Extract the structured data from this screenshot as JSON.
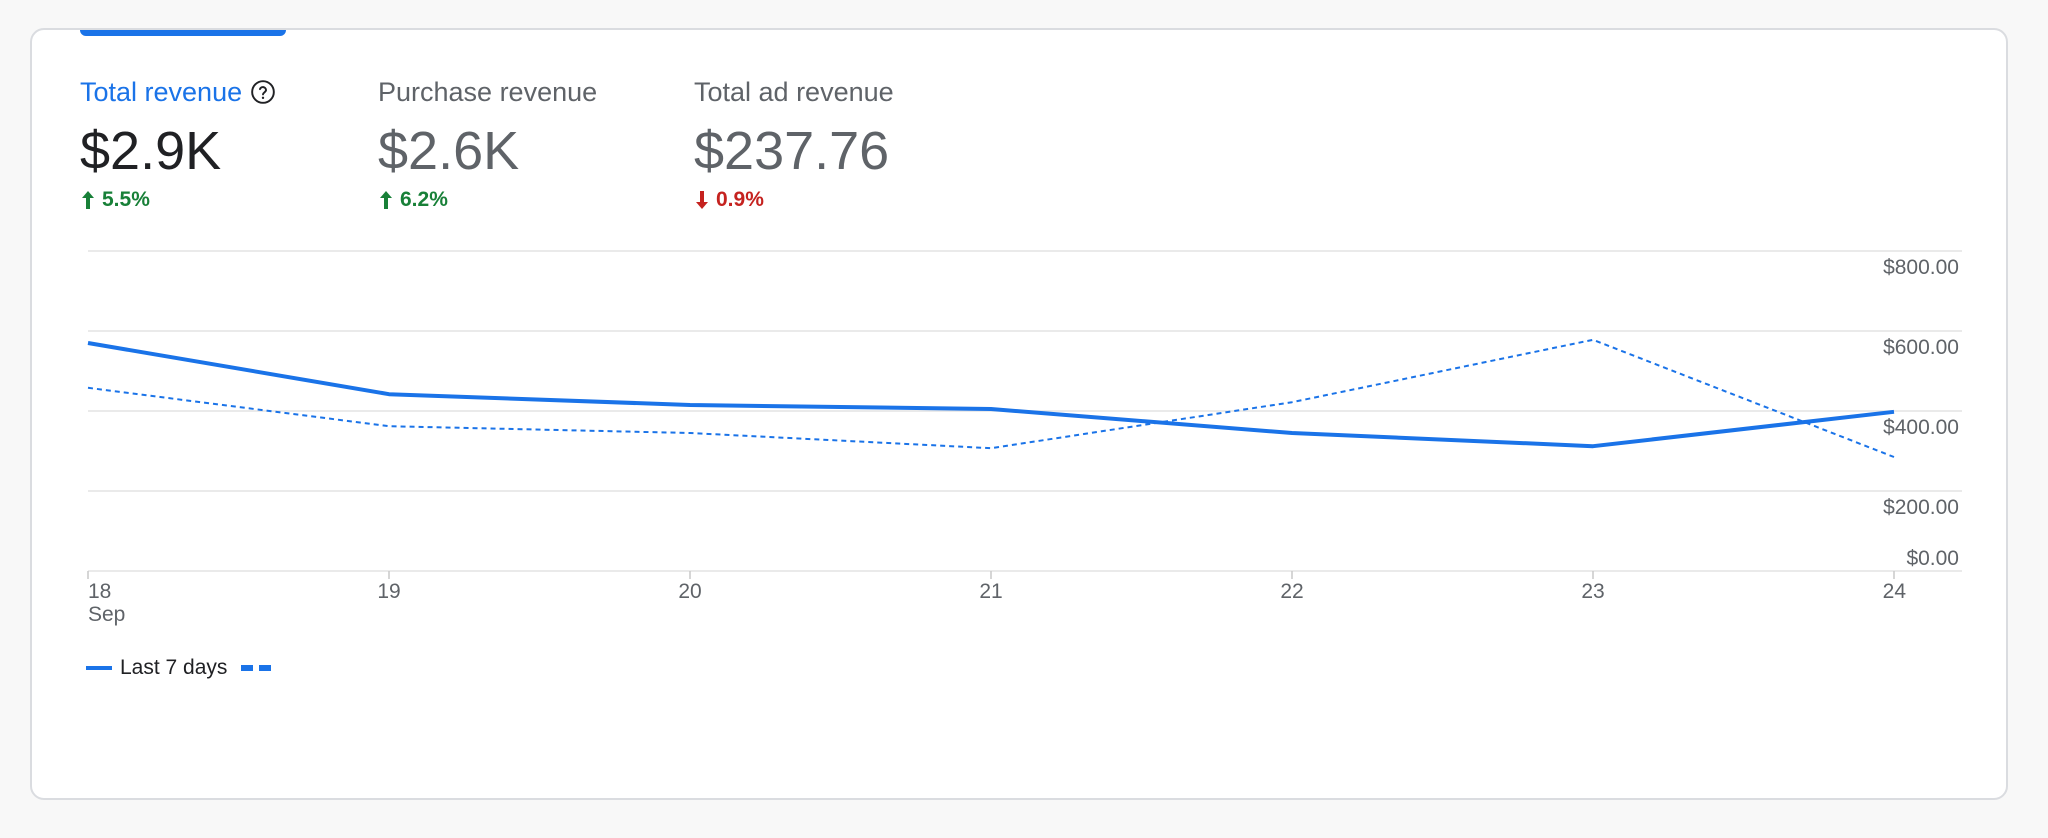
{
  "metrics": [
    {
      "label": "Total revenue",
      "value": "$2.9K",
      "change": "5.5%",
      "direction": "up",
      "active": true,
      "help_icon": "help-circle-icon"
    },
    {
      "label": "Purchase revenue",
      "value": "$2.6K",
      "change": "6.2%",
      "direction": "up",
      "active": false
    },
    {
      "label": "Total ad revenue",
      "value": "$237.76",
      "change": "0.9%",
      "direction": "down",
      "active": false
    }
  ],
  "colors": {
    "accent": "#1a73e8",
    "up": "#188038",
    "down": "#c5221f",
    "grid": "#e3e3e3",
    "text": "#5f6368"
  },
  "chart_data": {
    "type": "line",
    "title": "Total revenue",
    "x": [
      "18",
      "19",
      "20",
      "21",
      "22",
      "23",
      "24"
    ],
    "x_sublabel": "Sep",
    "ylim": [
      0,
      800
    ],
    "y_ticks": [
      0,
      200,
      400,
      600,
      800
    ],
    "y_tick_labels": [
      "$0.00",
      "$200.00",
      "$400.00",
      "$600.00",
      "$800.00"
    ],
    "y_axis_side": "right",
    "grid": true,
    "series": [
      {
        "name": "Last 7 days",
        "style": "solid",
        "values": [
          570,
          442,
          415,
          405,
          345,
          312,
          398
        ]
      },
      {
        "name": "",
        "style": "dashed",
        "values": [
          458,
          362,
          345,
          307,
          422,
          578,
          285
        ]
      }
    ],
    "legend": {
      "label": "Last 7 days",
      "position": "bottom-left"
    }
  }
}
